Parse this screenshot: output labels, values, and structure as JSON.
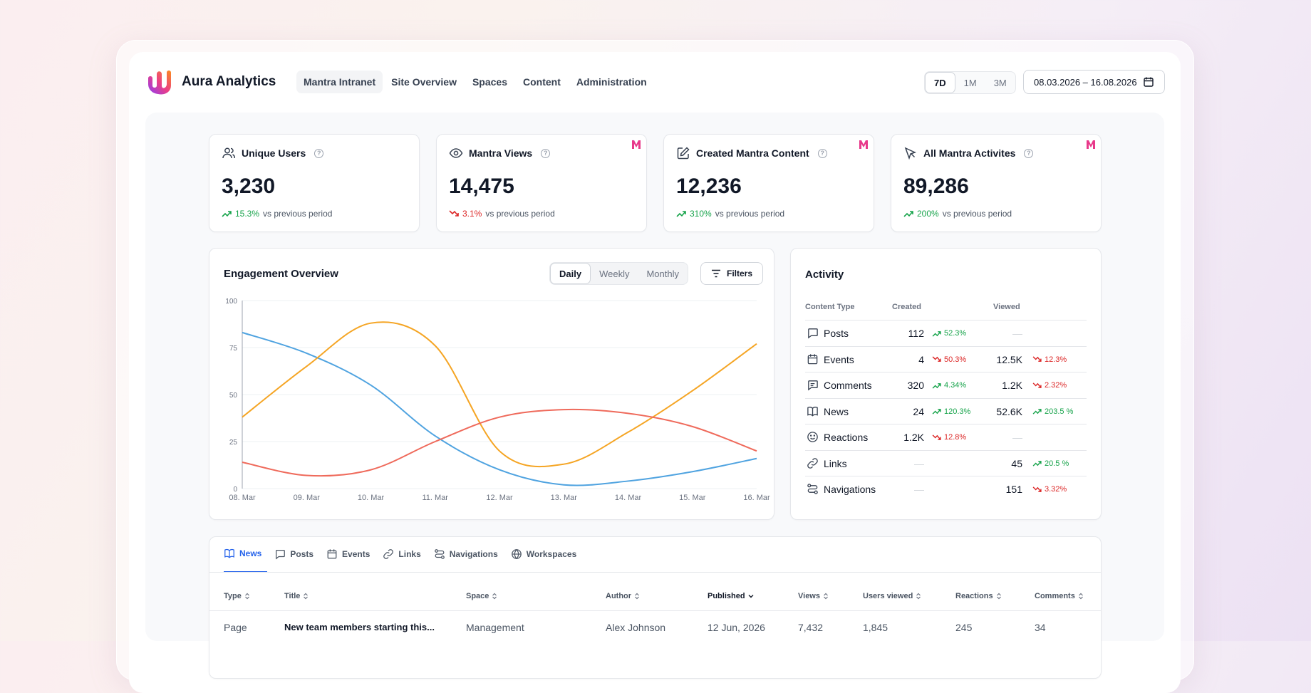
{
  "app": {
    "brand": "Aura Analytics"
  },
  "nav": [
    "Mantra Intranet",
    "Site Overview",
    "Spaces",
    "Content",
    "Administration"
  ],
  "range": {
    "options": [
      "7D",
      "1M",
      "3M"
    ],
    "selected": "7D"
  },
  "date_range": "08.03.2026 – 16.08.2026",
  "kpis": [
    {
      "label": "Unique Users",
      "value": "3,230",
      "trend": "15.3%",
      "direction": "up",
      "caption": "vs previous period",
      "icon": "users-icon",
      "badge": false
    },
    {
      "label": "Mantra Views",
      "value": "14,475",
      "trend": "3.1%",
      "direction": "down",
      "caption": "vs previous period",
      "icon": "eye-icon",
      "badge": true
    },
    {
      "label": "Created Mantra Content",
      "value": "12,236",
      "trend": "310%",
      "direction": "up",
      "caption": "vs previous period",
      "icon": "edit-icon",
      "badge": true
    },
    {
      "label": "All Mantra Activites",
      "value": "89,286",
      "trend": "200%",
      "direction": "up",
      "caption": "vs previous period",
      "icon": "cursor-icon",
      "badge": true
    }
  ],
  "engagement": {
    "title": "Engagement Overview",
    "periods": [
      "Daily",
      "Weekly",
      "Monthly"
    ],
    "selected_period": "Daily",
    "filters_label": "Filters"
  },
  "chart_data": {
    "type": "line",
    "title": "Engagement Overview",
    "categories": [
      "08. Mar",
      "09. Mar",
      "10. Mar",
      "11. Mar",
      "12. Mar",
      "13. Mar",
      "14. Mar",
      "15. Mar",
      "16. Mar"
    ],
    "ylim": [
      0,
      100
    ],
    "yticks": [
      0,
      25,
      50,
      75,
      100
    ],
    "grid": true,
    "series": [
      {
        "color": "#4fa3e0",
        "values": [
          83,
          72,
          55,
          28,
          10,
          2,
          4,
          9,
          16
        ]
      },
      {
        "color": "#f5a524",
        "values": [
          38,
          65,
          88,
          76,
          20,
          13,
          30,
          52,
          77
        ]
      },
      {
        "color": "#ef6a5b",
        "values": [
          14,
          7,
          10,
          25,
          38,
          42,
          40,
          33,
          20
        ]
      }
    ]
  },
  "activity": {
    "title": "Activity",
    "headers": {
      "type": "Content Type",
      "created": "Created",
      "viewed": "Viewed"
    },
    "rows": [
      {
        "name": "Posts",
        "icon": "chat-icon",
        "created": "112",
        "ctrend": "52.3%",
        "cdir": "up",
        "viewed": "—",
        "vtrend": "",
        "vdir": ""
      },
      {
        "name": "Events",
        "icon": "calendar-icon",
        "created": "4",
        "ctrend": "50.3%",
        "cdir": "down",
        "viewed": "12.5K",
        "vtrend": "12.3%",
        "vdir": "down"
      },
      {
        "name": "Comments",
        "icon": "comment-icon",
        "created": "320",
        "ctrend": "4.34%",
        "cdir": "up",
        "viewed": "1.2K",
        "vtrend": "2.32%",
        "vdir": "down"
      },
      {
        "name": "News",
        "icon": "book-icon",
        "created": "24",
        "ctrend": "120.3%",
        "cdir": "up",
        "viewed": "52.6K",
        "vtrend": "203.5 %",
        "vdir": "up"
      },
      {
        "name": "Reactions",
        "icon": "smile-icon",
        "created": "1.2K",
        "ctrend": "12.8%",
        "cdir": "down",
        "viewed": "—",
        "vtrend": "",
        "vdir": ""
      },
      {
        "name": "Links",
        "icon": "link-icon",
        "created": "—",
        "ctrend": "",
        "cdir": "",
        "viewed": "45",
        "vtrend": "20.5 %",
        "vdir": "up"
      },
      {
        "name": "Navigations",
        "icon": "route-icon",
        "created": "—",
        "ctrend": "",
        "cdir": "",
        "viewed": "151",
        "vtrend": "3.32%",
        "vdir": "down"
      }
    ]
  },
  "content_tabs": [
    {
      "label": "News",
      "icon": "book-icon",
      "active": true
    },
    {
      "label": "Posts",
      "icon": "chat-icon",
      "active": false
    },
    {
      "label": "Events",
      "icon": "calendar-icon",
      "active": false
    },
    {
      "label": "Links",
      "icon": "link-icon",
      "active": false
    },
    {
      "label": "Navigations",
      "icon": "route-icon",
      "active": false
    },
    {
      "label": "Workspaces",
      "icon": "globe-icon",
      "active": false
    }
  ],
  "table": {
    "columns": [
      "Type",
      "Title",
      "Space",
      "Author",
      "Published",
      "Views",
      "Users viewed",
      "Reactions",
      "Comments"
    ],
    "sorted_column": "Published",
    "rows": [
      [
        "Page",
        "New team members starting this...",
        "Management",
        "Alex Johnson",
        "12 Jun, 2026",
        "7,432",
        "1,845",
        "245",
        "34"
      ]
    ]
  },
  "colors": {
    "up": "#16a34a",
    "down": "#dc2626",
    "accent": "#2563eb"
  }
}
